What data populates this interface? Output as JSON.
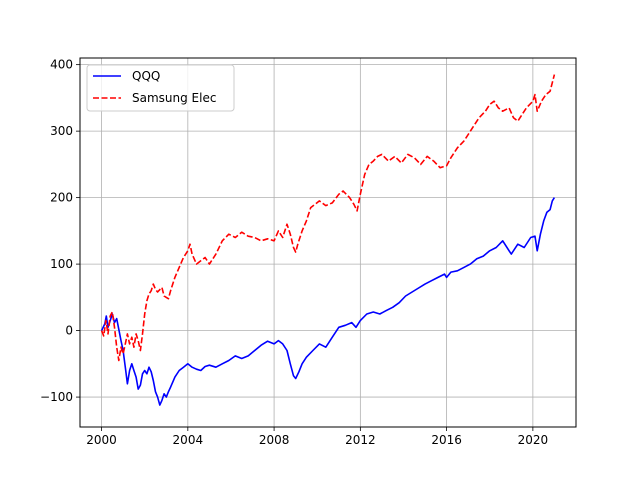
{
  "chart_data": {
    "type": "line",
    "title": "",
    "xlabel": "",
    "ylabel": "",
    "xlim": [
      1999,
      2022
    ],
    "ylim": [
      -145,
      410
    ],
    "grid": true,
    "legend_position": "top-left",
    "x_ticks": [
      2000,
      2004,
      2008,
      2012,
      2016,
      2020
    ],
    "x_tick_labels": [
      "2000",
      "2004",
      "2008",
      "2012",
      "2016",
      "2020"
    ],
    "y_ticks": [
      -100,
      0,
      100,
      200,
      300,
      400
    ],
    "y_tick_labels": [
      "−100",
      "0",
      "100",
      "200",
      "300",
      "400"
    ],
    "series": [
      {
        "name": "QQQ",
        "color": "#0000ff",
        "linestyle": "solid",
        "points": [
          [
            2000.0,
            0
          ],
          [
            2000.15,
            10
          ],
          [
            2000.22,
            22
          ],
          [
            2000.3,
            5
          ],
          [
            2000.4,
            15
          ],
          [
            2000.5,
            25
          ],
          [
            2000.6,
            12
          ],
          [
            2000.7,
            18
          ],
          [
            2000.8,
            2
          ],
          [
            2000.9,
            -15
          ],
          [
            2001.0,
            -30
          ],
          [
            2001.1,
            -55
          ],
          [
            2001.2,
            -80
          ],
          [
            2001.3,
            -60
          ],
          [
            2001.4,
            -50
          ],
          [
            2001.5,
            -60
          ],
          [
            2001.6,
            -70
          ],
          [
            2001.7,
            -88
          ],
          [
            2001.8,
            -82
          ],
          [
            2001.9,
            -65
          ],
          [
            2002.0,
            -60
          ],
          [
            2002.1,
            -65
          ],
          [
            2002.2,
            -55
          ],
          [
            2002.3,
            -62
          ],
          [
            2002.4,
            -75
          ],
          [
            2002.5,
            -92
          ],
          [
            2002.6,
            -100
          ],
          [
            2002.7,
            -112
          ],
          [
            2002.8,
            -105
          ],
          [
            2002.9,
            -95
          ],
          [
            2003.0,
            -100
          ],
          [
            2003.1,
            -92
          ],
          [
            2003.2,
            -85
          ],
          [
            2003.4,
            -70
          ],
          [
            2003.6,
            -60
          ],
          [
            2003.8,
            -55
          ],
          [
            2004.0,
            -50
          ],
          [
            2004.2,
            -55
          ],
          [
            2004.4,
            -58
          ],
          [
            2004.6,
            -60
          ],
          [
            2004.8,
            -54
          ],
          [
            2005.0,
            -52
          ],
          [
            2005.3,
            -55
          ],
          [
            2005.6,
            -50
          ],
          [
            2005.9,
            -45
          ],
          [
            2006.2,
            -38
          ],
          [
            2006.5,
            -42
          ],
          [
            2006.8,
            -38
          ],
          [
            2007.1,
            -30
          ],
          [
            2007.4,
            -22
          ],
          [
            2007.7,
            -16
          ],
          [
            2008.0,
            -20
          ],
          [
            2008.2,
            -15
          ],
          [
            2008.4,
            -20
          ],
          [
            2008.6,
            -30
          ],
          [
            2008.75,
            -50
          ],
          [
            2008.9,
            -68
          ],
          [
            2009.0,
            -72
          ],
          [
            2009.15,
            -62
          ],
          [
            2009.3,
            -50
          ],
          [
            2009.5,
            -40
          ],
          [
            2009.8,
            -30
          ],
          [
            2010.1,
            -20
          ],
          [
            2010.4,
            -25
          ],
          [
            2010.7,
            -10
          ],
          [
            2011.0,
            5
          ],
          [
            2011.3,
            8
          ],
          [
            2011.6,
            12
          ],
          [
            2011.8,
            5
          ],
          [
            2012.0,
            15
          ],
          [
            2012.3,
            25
          ],
          [
            2012.6,
            28
          ],
          [
            2012.9,
            25
          ],
          [
            2013.2,
            30
          ],
          [
            2013.5,
            35
          ],
          [
            2013.8,
            42
          ],
          [
            2014.1,
            52
          ],
          [
            2014.4,
            58
          ],
          [
            2014.7,
            64
          ],
          [
            2015.0,
            70
          ],
          [
            2015.3,
            75
          ],
          [
            2015.6,
            80
          ],
          [
            2015.9,
            85
          ],
          [
            2016.0,
            80
          ],
          [
            2016.2,
            88
          ],
          [
            2016.5,
            90
          ],
          [
            2016.8,
            95
          ],
          [
            2017.1,
            100
          ],
          [
            2017.4,
            108
          ],
          [
            2017.7,
            112
          ],
          [
            2018.0,
            120
          ],
          [
            2018.3,
            125
          ],
          [
            2018.6,
            135
          ],
          [
            2018.9,
            120
          ],
          [
            2019.0,
            115
          ],
          [
            2019.3,
            130
          ],
          [
            2019.6,
            125
          ],
          [
            2019.9,
            140
          ],
          [
            2020.1,
            142
          ],
          [
            2020.2,
            120
          ],
          [
            2020.35,
            145
          ],
          [
            2020.5,
            165
          ],
          [
            2020.65,
            178
          ],
          [
            2020.8,
            182
          ],
          [
            2020.9,
            195
          ],
          [
            2021.0,
            200
          ]
        ]
      },
      {
        "name": "Samsung Elec",
        "color": "#ff0000",
        "linestyle": "dashed",
        "points": [
          [
            2000.0,
            0
          ],
          [
            2000.1,
            -8
          ],
          [
            2000.2,
            15
          ],
          [
            2000.3,
            -5
          ],
          [
            2000.4,
            22
          ],
          [
            2000.5,
            28
          ],
          [
            2000.6,
            5
          ],
          [
            2000.7,
            -25
          ],
          [
            2000.8,
            -45
          ],
          [
            2000.9,
            -25
          ],
          [
            2001.0,
            -35
          ],
          [
            2001.1,
            -20
          ],
          [
            2001.2,
            -5
          ],
          [
            2001.3,
            -20
          ],
          [
            2001.4,
            -10
          ],
          [
            2001.5,
            -25
          ],
          [
            2001.6,
            -5
          ],
          [
            2001.7,
            -15
          ],
          [
            2001.8,
            -30
          ],
          [
            2001.9,
            -5
          ],
          [
            2002.0,
            25
          ],
          [
            2002.1,
            45
          ],
          [
            2002.2,
            55
          ],
          [
            2002.3,
            60
          ],
          [
            2002.4,
            70
          ],
          [
            2002.5,
            62
          ],
          [
            2002.6,
            58
          ],
          [
            2002.8,
            65
          ],
          [
            2002.9,
            52
          ],
          [
            2003.0,
            50
          ],
          [
            2003.1,
            48
          ],
          [
            2003.2,
            60
          ],
          [
            2003.4,
            80
          ],
          [
            2003.6,
            95
          ],
          [
            2003.8,
            110
          ],
          [
            2004.0,
            120
          ],
          [
            2004.1,
            130
          ],
          [
            2004.2,
            115
          ],
          [
            2004.4,
            100
          ],
          [
            2004.6,
            105
          ],
          [
            2004.8,
            110
          ],
          [
            2005.0,
            100
          ],
          [
            2005.3,
            115
          ],
          [
            2005.6,
            135
          ],
          [
            2005.9,
            145
          ],
          [
            2006.2,
            140
          ],
          [
            2006.5,
            148
          ],
          [
            2006.8,
            142
          ],
          [
            2007.1,
            140
          ],
          [
            2007.4,
            135
          ],
          [
            2007.7,
            138
          ],
          [
            2008.0,
            135
          ],
          [
            2008.2,
            150
          ],
          [
            2008.4,
            140
          ],
          [
            2008.6,
            160
          ],
          [
            2008.75,
            145
          ],
          [
            2008.9,
            125
          ],
          [
            2009.0,
            118
          ],
          [
            2009.1,
            130
          ],
          [
            2009.3,
            150
          ],
          [
            2009.5,
            165
          ],
          [
            2009.7,
            185
          ],
          [
            2009.9,
            190
          ],
          [
            2010.1,
            195
          ],
          [
            2010.4,
            188
          ],
          [
            2010.7,
            192
          ],
          [
            2011.0,
            205
          ],
          [
            2011.2,
            210
          ],
          [
            2011.5,
            200
          ],
          [
            2011.7,
            190
          ],
          [
            2011.85,
            180
          ],
          [
            2012.0,
            205
          ],
          [
            2012.2,
            235
          ],
          [
            2012.4,
            250
          ],
          [
            2012.6,
            255
          ],
          [
            2012.8,
            262
          ],
          [
            2013.0,
            265
          ],
          [
            2013.3,
            255
          ],
          [
            2013.6,
            262
          ],
          [
            2013.9,
            252
          ],
          [
            2014.2,
            265
          ],
          [
            2014.5,
            260
          ],
          [
            2014.8,
            250
          ],
          [
            2015.1,
            262
          ],
          [
            2015.4,
            255
          ],
          [
            2015.7,
            245
          ],
          [
            2016.0,
            248
          ],
          [
            2016.2,
            260
          ],
          [
            2016.5,
            275
          ],
          [
            2016.8,
            285
          ],
          [
            2017.0,
            295
          ],
          [
            2017.2,
            305
          ],
          [
            2017.5,
            320
          ],
          [
            2017.8,
            330
          ],
          [
            2018.0,
            340
          ],
          [
            2018.2,
            345
          ],
          [
            2018.4,
            335
          ],
          [
            2018.6,
            330
          ],
          [
            2018.9,
            335
          ],
          [
            2019.1,
            320
          ],
          [
            2019.3,
            315
          ],
          [
            2019.5,
            325
          ],
          [
            2019.7,
            335
          ],
          [
            2020.0,
            345
          ],
          [
            2020.1,
            355
          ],
          [
            2020.2,
            330
          ],
          [
            2020.4,
            345
          ],
          [
            2020.6,
            355
          ],
          [
            2020.8,
            360
          ],
          [
            2021.0,
            385
          ]
        ]
      }
    ]
  }
}
